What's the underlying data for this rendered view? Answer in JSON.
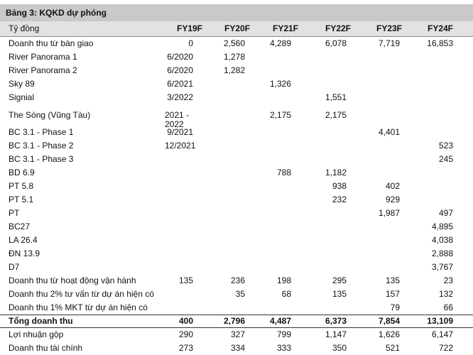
{
  "title": "Bảng 3: KQKD dự phóng",
  "header": [
    "Tỷ đồng",
    "FY19F",
    "FY20F",
    "FY21F",
    "FY22F",
    "FY23F",
    "FY24F"
  ],
  "rows": [
    {
      "label": "Doanh thu từ bàn giao",
      "cells": [
        "0",
        "2,560",
        "4,289",
        "6,078",
        "7,719",
        "16,853"
      ]
    },
    {
      "label": "River Panorama 1",
      "cells": [
        "6/2020",
        "1,278",
        null,
        null,
        null,
        null
      ]
    },
    {
      "label": "River Panorama 2",
      "cells": [
        "6/2020",
        "1,282",
        null,
        null,
        null,
        null
      ]
    },
    {
      "label": "Sky 89",
      "cells": [
        "6/2021",
        null,
        "1,326",
        null,
        null,
        null
      ]
    },
    {
      "label": "Signial",
      "cells": [
        "3/2022",
        null,
        null,
        "1,551",
        null,
        null
      ]
    },
    {
      "label": "The Sóng (Vũng Tàu)",
      "cells": [
        "2021 - 2022",
        null,
        "2,175",
        "2,175",
        null,
        null
      ]
    },
    {
      "label": "BC 3.1 - Phase 1",
      "cells": [
        "9/2021",
        null,
        null,
        null,
        "4,401",
        null
      ]
    },
    {
      "label": "BC 3.1 - Phase 2",
      "cells": [
        "12/2021",
        null,
        null,
        null,
        null,
        "523"
      ]
    },
    {
      "label": "BC 3.1 - Phase 3",
      "cells": [
        null,
        null,
        null,
        null,
        null,
        "245"
      ]
    },
    {
      "label": "BD 6.9",
      "cells": [
        null,
        null,
        "788",
        "1,182",
        null,
        null
      ]
    },
    {
      "label": "PT 5.8",
      "cells": [
        null,
        null,
        null,
        "938",
        "402",
        null
      ]
    },
    {
      "label": "PT 5.1",
      "cells": [
        null,
        null,
        null,
        "232",
        "929",
        null
      ]
    },
    {
      "label": "PT",
      "cells": [
        null,
        null,
        null,
        null,
        "1,987",
        "497"
      ]
    },
    {
      "label": "BC27",
      "cells": [
        null,
        null,
        null,
        null,
        null,
        "4,895"
      ]
    },
    {
      "label": "LA 26.4",
      "cells": [
        null,
        null,
        null,
        null,
        null,
        "4,038"
      ]
    },
    {
      "label": "ĐN 13.9",
      "cells": [
        null,
        null,
        null,
        null,
        null,
        "2,888"
      ]
    },
    {
      "label": "D7",
      "cells": [
        null,
        null,
        null,
        null,
        null,
        "3,767"
      ]
    },
    {
      "label": "Doanh thu từ hoạt động vận hành",
      "cells": [
        "135",
        "236",
        "198",
        "295",
        "135",
        "23"
      ]
    },
    {
      "label": "Doanh thu 2% tư vấn từ dự án hiện có",
      "cells": [
        null,
        "35",
        "68",
        "135",
        "157",
        "132"
      ]
    },
    {
      "label": "Doanh thu 1% MKT từ dự án hiện có",
      "cells": [
        null,
        null,
        null,
        null,
        "79",
        "66"
      ]
    },
    {
      "label": "Tổng doanh thu",
      "bold": true,
      "cells": [
        "400",
        "2,796",
        "4,487",
        "6,373",
        "7,854",
        "13,109"
      ]
    },
    {
      "label": "Lợi nhuận gộp",
      "cells": [
        "290",
        "327",
        "799",
        "1,147",
        "1,626",
        "6,147"
      ]
    },
    {
      "label": "Doanh thu tài chính",
      "cells": [
        "273",
        "334",
        "333",
        "350",
        "521",
        "722"
      ]
    }
  ]
}
